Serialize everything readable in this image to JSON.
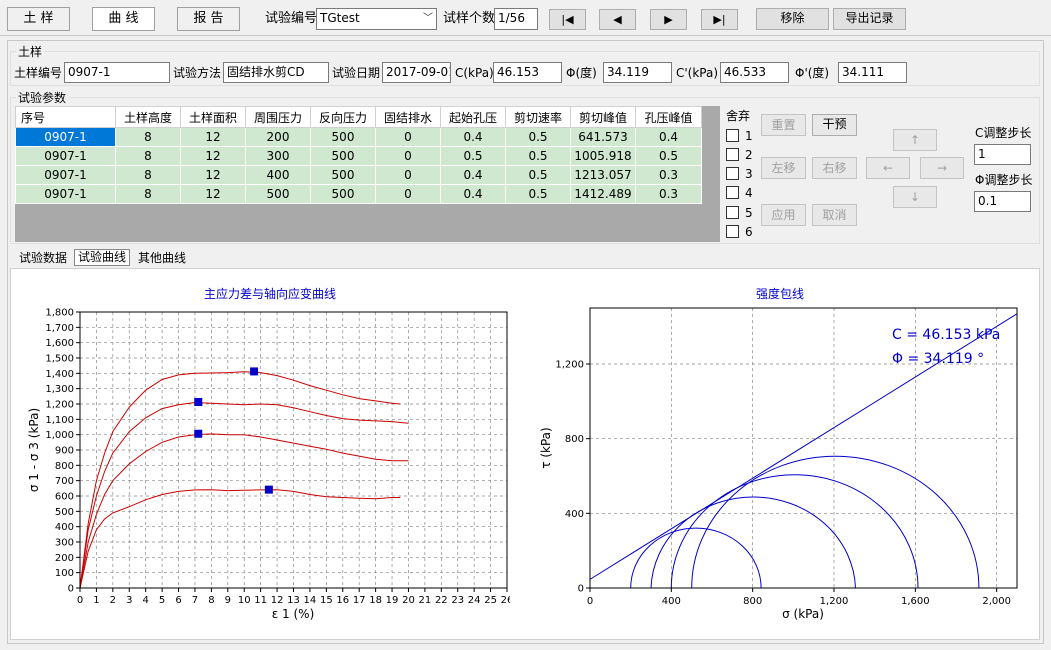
{
  "toolbar": {
    "tab_soil": "土 样",
    "tab_curve": "曲 线",
    "tab_report": "报 告",
    "test_id_label": "试验编号",
    "test_id_value": "TGtest",
    "sample_count_label": "试样个数",
    "sample_count_value": "1/56",
    "first_glyph": "|◀",
    "prev_glyph": "◀",
    "next_glyph": "▶",
    "last_glyph": "▶|",
    "remove_label": "移除",
    "export_label": "导出记录"
  },
  "soil": {
    "group_title": "土样",
    "sample_no_label": "土样编号",
    "sample_no_value": "0907-1",
    "method_label": "试验方法",
    "method_value": "固结排水剪CD",
    "date_label": "试验日期",
    "date_value": "2017-09-01",
    "c_label": "C(kPa)",
    "c_value": "46.153",
    "phi_label": "Φ(度)",
    "phi_value": "34.119",
    "c2_label": "C'(kPa)",
    "c2_value": "46.533",
    "phi2_label": "Φ'(度)",
    "phi2_value": "34.111"
  },
  "params": {
    "group_title": "试验参数",
    "headers": [
      "序号",
      "土样高度",
      "土样面积",
      "周围压力",
      "反向压力",
      "固结排水",
      "起始孔压",
      "剪切速率",
      "剪切峰值",
      "孔压峰值"
    ],
    "rows": [
      [
        "0907-1",
        "8",
        "12",
        "200",
        "500",
        "0",
        "0.4",
        "0.5",
        "641.573",
        "0.4"
      ],
      [
        "0907-1",
        "8",
        "12",
        "300",
        "500",
        "0",
        "0.5",
        "0.5",
        "1005.918",
        "0.5"
      ],
      [
        "0907-1",
        "8",
        "12",
        "400",
        "500",
        "0",
        "0.4",
        "0.5",
        "1213.057",
        "0.3"
      ],
      [
        "0907-1",
        "8",
        "12",
        "500",
        "500",
        "0",
        "0.4",
        "0.5",
        "1412.489",
        "0.3"
      ]
    ],
    "discard_label": "舍弃",
    "discard_items": [
      "1",
      "2",
      "3",
      "4",
      "5",
      "6"
    ],
    "reset_label": "重置",
    "dry_label": "干预",
    "left_label": "左移",
    "right_label": "右移",
    "apply_label": "应用",
    "cancel_label": "取消",
    "up_glyph": "↑",
    "left_glyph": "←",
    "right_glyph": "→",
    "down_glyph": "↓",
    "c_step_label": "C调整步长",
    "c_step_value": "1",
    "phi_step_label": "Φ调整步长",
    "phi_step_value": "0.1"
  },
  "subtabs": {
    "data": "试验数据",
    "curve": "试验曲线",
    "other": "其他曲线"
  },
  "chart_data": [
    {
      "type": "line",
      "title": "主应力差与轴向应变曲线",
      "xlabel": "ε 1  (%)",
      "ylabel": "σ 1 - σ 3  (kPa)",
      "xlim": [
        0,
        26
      ],
      "ylim": [
        0,
        1800
      ],
      "x_ticks": [
        "0",
        "1",
        "2",
        "3",
        "4",
        "5",
        "6",
        "7",
        "8",
        "9",
        "10",
        "11",
        "12",
        "13",
        "14",
        "15",
        "16",
        "17",
        "18",
        "19",
        "20",
        "21",
        "22",
        "23",
        "24",
        "25",
        "26"
      ],
      "y_ticks": [
        "0",
        "100",
        "200",
        "300",
        "400",
        "500",
        "600",
        "700",
        "800",
        "900",
        "1,000",
        "1,100",
        "1,200",
        "1,300",
        "1,400",
        "1,500",
        "1,600",
        "1,700",
        "1,800"
      ],
      "grid": true,
      "line_color": "#cc0000",
      "marker_color": "#0000cc",
      "series": [
        {
          "peak": [
            11.5,
            641.573
          ],
          "points": [
            [
              0,
              0
            ],
            [
              0.5,
              240
            ],
            [
              1,
              380
            ],
            [
              1.5,
              450
            ],
            [
              2,
              490
            ],
            [
              3,
              530
            ],
            [
              4,
              575
            ],
            [
              5,
              610
            ],
            [
              6,
              630
            ],
            [
              7,
              640
            ],
            [
              8,
              641
            ],
            [
              9,
              635
            ],
            [
              10,
              638
            ],
            [
              11,
              640
            ],
            [
              12,
              641
            ],
            [
              13,
              630
            ],
            [
              14,
              610
            ],
            [
              15,
              595
            ],
            [
              16,
              590
            ],
            [
              17,
              585
            ],
            [
              18,
              582
            ],
            [
              19,
              590
            ],
            [
              19.5,
              590
            ]
          ]
        },
        {
          "peak": [
            7.2,
            1005.918
          ],
          "points": [
            [
              0,
              0
            ],
            [
              0.5,
              300
            ],
            [
              1,
              480
            ],
            [
              1.5,
              610
            ],
            [
              2,
              700
            ],
            [
              3,
              810
            ],
            [
              4,
              890
            ],
            [
              5,
              950
            ],
            [
              6,
              985
            ],
            [
              7,
              1000
            ],
            [
              8,
              1005
            ],
            [
              9,
              1000
            ],
            [
              10,
              1000
            ],
            [
              11,
              985
            ],
            [
              12,
              965
            ],
            [
              13,
              945
            ],
            [
              14,
              925
            ],
            [
              15,
              905
            ],
            [
              16,
              880
            ],
            [
              17,
              860
            ],
            [
              18,
              840
            ],
            [
              19,
              830
            ],
            [
              20,
              830
            ]
          ]
        },
        {
          "peak": [
            7.2,
            1213.057
          ],
          "points": [
            [
              0,
              0
            ],
            [
              0.5,
              380
            ],
            [
              1,
              600
            ],
            [
              1.5,
              760
            ],
            [
              2,
              880
            ],
            [
              3,
              1020
            ],
            [
              4,
              1110
            ],
            [
              5,
              1170
            ],
            [
              6,
              1195
            ],
            [
              7,
              1210
            ],
            [
              8,
              1205
            ],
            [
              9,
              1200
            ],
            [
              10,
              1195
            ],
            [
              11,
              1200
            ],
            [
              12,
              1195
            ],
            [
              13,
              1175
            ],
            [
              14,
              1150
            ],
            [
              15,
              1125
            ],
            [
              16,
              1105
            ],
            [
              17,
              1095
            ],
            [
              18,
              1090
            ],
            [
              19,
              1085
            ],
            [
              20,
              1075
            ]
          ]
        },
        {
          "peak": [
            10.6,
            1412.489
          ],
          "points": [
            [
              0,
              0
            ],
            [
              0.5,
              420
            ],
            [
              1,
              700
            ],
            [
              1.5,
              880
            ],
            [
              2,
              1020
            ],
            [
              3,
              1180
            ],
            [
              4,
              1290
            ],
            [
              5,
              1360
            ],
            [
              6,
              1390
            ],
            [
              7,
              1400
            ],
            [
              8,
              1402
            ],
            [
              9,
              1405
            ],
            [
              10,
              1410
            ],
            [
              11,
              1405
            ],
            [
              12,
              1385
            ],
            [
              13,
              1355
            ],
            [
              14,
              1320
            ],
            [
              15,
              1290
            ],
            [
              16,
              1260
            ],
            [
              17,
              1235
            ],
            [
              18,
              1220
            ],
            [
              19,
              1205
            ],
            [
              19.5,
              1200
            ]
          ]
        }
      ]
    },
    {
      "type": "line",
      "title": "强度包线",
      "xlabel": "σ  (kPa)",
      "ylabel": "τ  (kPa)",
      "xlim": [
        0,
        2100
      ],
      "ylim": [
        0,
        1500
      ],
      "x_ticks": [
        "0",
        "400",
        "800",
        "1,200",
        "1,600",
        "2,000"
      ],
      "x_tick_values": [
        0,
        400,
        800,
        1200,
        1600,
        2000
      ],
      "y_ticks": [
        "0",
        "400",
        "800",
        "1,200"
      ],
      "y_tick_values": [
        0,
        400,
        800,
        1200
      ],
      "grid": true,
      "line_color": "#0000cc",
      "annotations": [
        "C = 46.153 kPa",
        "Φ = 34.119 °"
      ],
      "mohr_circles": [
        {
          "sigma3": 200,
          "sigma1": 841.573
        },
        {
          "sigma3": 300,
          "sigma1": 1305.918
        },
        {
          "sigma3": 400,
          "sigma1": 1613.057
        },
        {
          "sigma3": 500,
          "sigma1": 1912.489
        }
      ],
      "envelope": {
        "c": 46.153,
        "phi_deg": 34.119
      }
    }
  ]
}
